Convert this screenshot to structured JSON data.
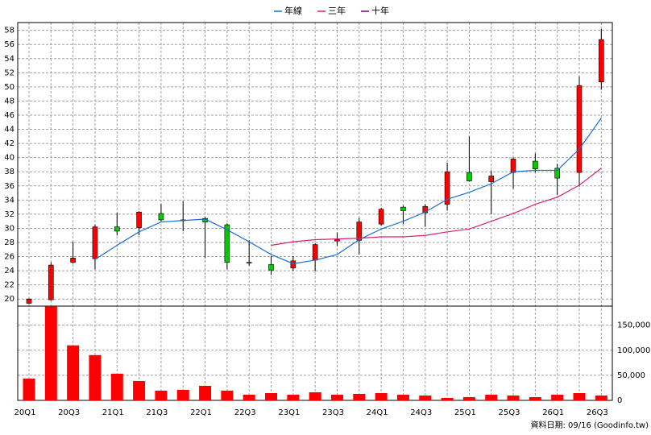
{
  "chart_data": {
    "type": "candlestick",
    "categories": [
      "20Q1",
      null,
      "20Q3",
      null,
      "21Q1",
      null,
      "21Q3",
      null,
      "22Q1",
      null,
      "22Q3",
      null,
      "23Q1",
      null,
      "23Q3",
      null,
      "24Q1",
      null,
      "24Q3",
      null,
      "25Q1",
      null,
      "25Q3",
      null,
      "26Q1",
      null,
      "26Q3"
    ],
    "open": [
      19.4,
      19.9,
      25.2,
      25.7,
      30.2,
      30.1,
      32.1,
      31.2,
      31.4,
      30.5,
      25.2,
      24.9,
      24.4,
      25.5,
      28.2,
      28.3,
      30.6,
      33.0,
      32.2,
      33.4,
      37.9,
      36.6,
      37.9,
      39.5,
      38.5,
      37.9,
      50.7
    ],
    "high": [
      20.1,
      25.2,
      28.1,
      30.5,
      32.2,
      32.4,
      33.5,
      33.8,
      31.6,
      30.7,
      28.3,
      26.1,
      26.1,
      27.9,
      29.4,
      31.5,
      32.9,
      33.2,
      33.4,
      39.3,
      43.0,
      38.2,
      40.0,
      40.6,
      39.1,
      51.5,
      58.2
    ],
    "low": [
      19.3,
      19.8,
      25.0,
      24.2,
      29.0,
      29.0,
      31.0,
      29.6,
      25.8,
      24.2,
      24.7,
      23.4,
      24.0,
      23.9,
      27.5,
      26.3,
      30.4,
      30.6,
      30.2,
      32.5,
      36.6,
      32.0,
      35.6,
      37.9,
      34.7,
      35.9,
      49.6
    ],
    "close": [
      20.0,
      24.8,
      25.8,
      30.2,
      29.6,
      32.3,
      31.2,
      31.1,
      30.9,
      25.2,
      25.1,
      24.1,
      25.4,
      27.7,
      28.4,
      30.9,
      32.7,
      32.5,
      33.1,
      38.0,
      36.7,
      37.4,
      39.8,
      38.4,
      37.1,
      50.2,
      56.7
    ],
    "up_color": "#ff0000",
    "down_color": "#00cc00",
    "ylim": [
      19,
      59.1
    ],
    "yticks": [
      20,
      22,
      24,
      26,
      28,
      30,
      32,
      34,
      36,
      38,
      40,
      42,
      44,
      46,
      48,
      50,
      52,
      54,
      56,
      58
    ],
    "grid": true,
    "series": [
      {
        "name": "年線",
        "color": "#1a6fd1",
        "values": [
          null,
          null,
          null,
          25.6,
          27.6,
          29.5,
          30.9,
          31.1,
          31.3,
          29.8,
          28.1,
          26.3,
          25.0,
          25.5,
          26.3,
          28.4,
          29.9,
          31.0,
          32.3,
          34.1,
          35.1,
          36.3,
          38.0,
          38.2,
          38.2,
          41.2,
          45.6
        ]
      },
      {
        "name": "三年",
        "color": "#e0206f",
        "values": [
          null,
          null,
          null,
          null,
          null,
          null,
          null,
          null,
          null,
          null,
          null,
          27.6,
          28.1,
          28.4,
          28.5,
          28.6,
          28.8,
          28.8,
          29.0,
          29.5,
          29.9,
          31.0,
          32.1,
          33.4,
          34.4,
          36.1,
          38.5
        ]
      },
      {
        "name": "十年",
        "color": "#800080",
        "values": [
          null,
          null,
          null,
          null,
          null,
          null,
          null,
          null,
          null,
          null,
          null,
          null,
          null,
          null,
          null,
          null,
          null,
          null,
          null,
          null,
          null,
          null,
          null,
          null,
          null,
          null,
          null
        ]
      }
    ],
    "volume": {
      "type": "bar",
      "color": "#ff0000",
      "values": [
        43500,
        187000,
        109700,
        90300,
        53200,
        38700,
        19400,
        21000,
        29000,
        19400,
        11300,
        14500,
        11300,
        16100,
        11300,
        12900,
        14500,
        11300,
        9700,
        4800,
        6500,
        11300,
        9700,
        6500,
        11300,
        14500,
        9700
      ],
      "ylim": [
        0,
        188000
      ],
      "yticks": [
        0,
        {
          "value": 50000,
          "label": "50,000"
        },
        {
          "value": 100000,
          "label": "100,000"
        },
        {
          "value": 150000,
          "label": "150,000"
        }
      ]
    },
    "source_note": "資料日期: 09/16  (Goodinfo.tw)"
  }
}
